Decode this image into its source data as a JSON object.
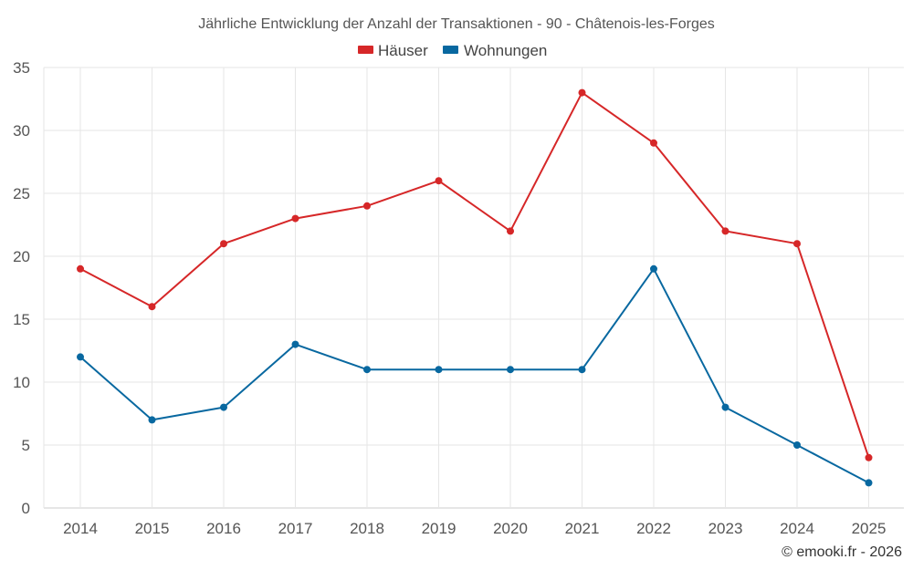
{
  "chart_data": {
    "type": "line",
    "title": "Jährliche Entwicklung der Anzahl der Transaktionen - 90 - Châtenois-les-Forges",
    "categories": [
      "2014",
      "2015",
      "2016",
      "2017",
      "2018",
      "2019",
      "2020",
      "2021",
      "2022",
      "2023",
      "2024",
      "2025"
    ],
    "series": [
      {
        "name": "Häuser",
        "color": "#d62728",
        "values": [
          19,
          16,
          21,
          23,
          24,
          26,
          22,
          33,
          29,
          22,
          21,
          4
        ]
      },
      {
        "name": "Wohnungen",
        "color": "#0868a0",
        "values": [
          12,
          7,
          8,
          13,
          11,
          11,
          11,
          11,
          19,
          8,
          5,
          2
        ]
      }
    ],
    "xlabel": "",
    "ylabel": "",
    "ylim": [
      0,
      35
    ],
    "yticks": [
      0,
      5,
      10,
      15,
      20,
      25,
      30,
      35
    ],
    "grid": true,
    "legend_position": "top-center"
  },
  "credit": "© emooki.fr - 2026"
}
